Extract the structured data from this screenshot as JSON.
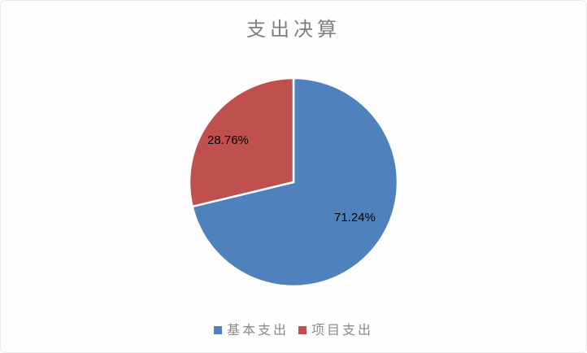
{
  "chart_data": {
    "type": "pie",
    "title": "支出决算",
    "categories": [
      "基本支出",
      "项目支出"
    ],
    "values": [
      71.24,
      28.76
    ],
    "data_labels": [
      "71.24%",
      "28.76%"
    ],
    "colors": [
      "#4F81BD",
      "#C0504D"
    ],
    "legend_position": "bottom",
    "start_angle_deg": 0,
    "direction": "clockwise",
    "slice_border_color": "#FFFFFF",
    "title_color": "#7F7F7F",
    "legend_text_color": "#8A8A8A",
    "data_label_color": "#000000",
    "background_color": "#FEFEFE",
    "frame_border_color": "#E9E9E9"
  }
}
